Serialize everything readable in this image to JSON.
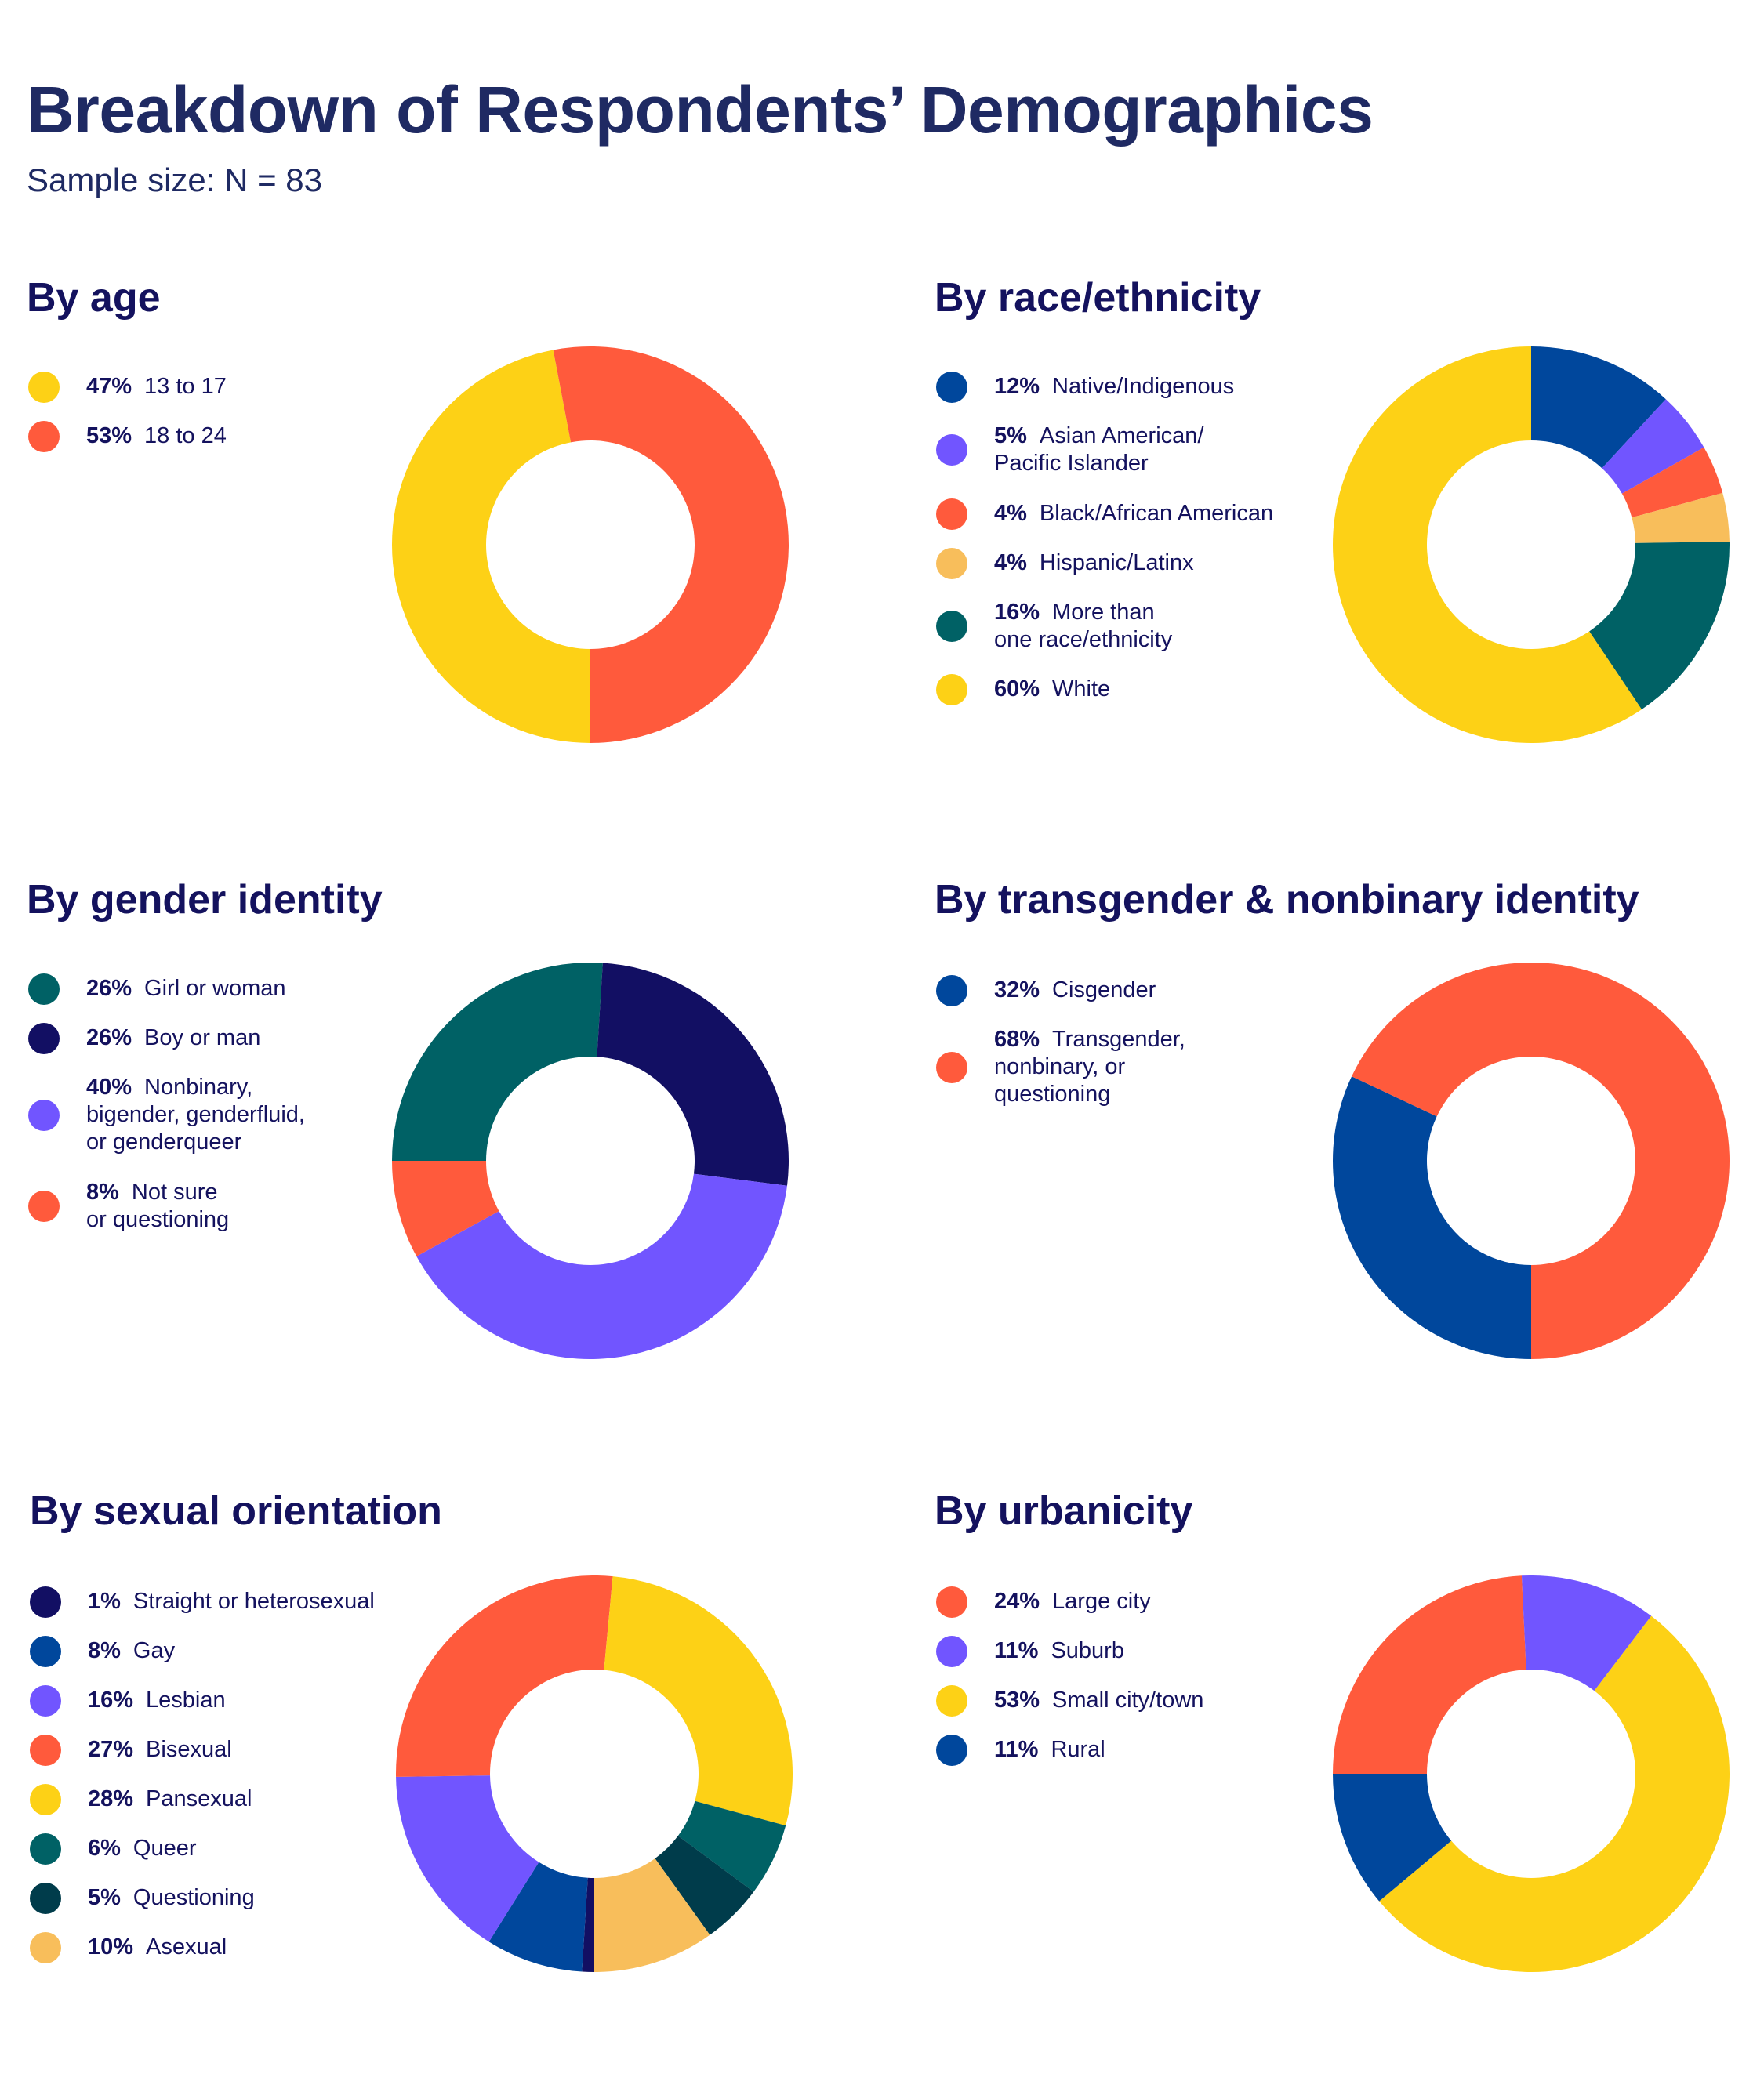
{
  "header": {
    "title": "Breakdown of Respondents’ Demographics",
    "subtitle": "Sample size: N = 83"
  },
  "colors": {
    "yellow": "#fdd116",
    "red": "#ff5a3c",
    "teal": "#006165",
    "navy": "#120f63",
    "purple": "#7155ff",
    "blue": "#00479c",
    "amber": "#f8be5b",
    "darkteal": "#003c4b"
  },
  "chart_data": [
    {
      "type": "pie",
      "title": "By age",
      "slices": [
        {
          "pct_label": "47%",
          "label": "13 to 17",
          "value": 47,
          "color": "#fdd116"
        },
        {
          "pct_label": "53%",
          "label": "18 to 24",
          "value": 53,
          "color": "#ff5a3c"
        }
      ]
    },
    {
      "type": "pie",
      "title": "By race/ethnicity",
      "slices": [
        {
          "pct_label": "12%",
          "label": "Native/Indigenous",
          "value": 12,
          "color": "#00479c"
        },
        {
          "pct_label": "5%",
          "label": "Asian American/ Pacific Islander",
          "value": 5,
          "color": "#7155ff"
        },
        {
          "pct_label": "4%",
          "label": "Black/African American",
          "value": 4,
          "color": "#ff5a3c"
        },
        {
          "pct_label": "4%",
          "label": "Hispanic/Latinx",
          "value": 4,
          "color": "#f8be5b"
        },
        {
          "pct_label": "16%",
          "label": "More than one race/ethnicity",
          "value": 16,
          "color": "#006165"
        },
        {
          "pct_label": "60%",
          "label": "White",
          "value": 60,
          "color": "#fdd116"
        }
      ]
    },
    {
      "type": "pie",
      "title": "By gender identity",
      "slices": [
        {
          "pct_label": "26%",
          "label": "Girl or woman",
          "value": 26,
          "color": "#006165"
        },
        {
          "pct_label": "26%",
          "label": "Boy or man",
          "value": 26,
          "color": "#120f63"
        },
        {
          "pct_label": "40%",
          "label": "Nonbinary, bigender, genderfluid, or genderqueer",
          "value": 40,
          "color": "#7155ff"
        },
        {
          "pct_label": "8%",
          "label": "Not sure or questioning",
          "value": 8,
          "color": "#ff5a3c"
        }
      ]
    },
    {
      "type": "pie",
      "title": "By transgender & nonbinary identity",
      "slices": [
        {
          "pct_label": "32%",
          "label": "Cisgender",
          "value": 32,
          "color": "#00479c"
        },
        {
          "pct_label": "68%",
          "label": "Transgender, nonbinary, or questioning",
          "value": 68,
          "color": "#ff5a3c"
        }
      ]
    },
    {
      "type": "pie",
      "title": "By sexual orientation",
      "slices": [
        {
          "pct_label": "1%",
          "label": "Straight or heterosexual",
          "value": 1,
          "color": "#120f63"
        },
        {
          "pct_label": "8%",
          "label": "Gay",
          "value": 8,
          "color": "#00479c"
        },
        {
          "pct_label": "16%",
          "label": "Lesbian",
          "value": 16,
          "color": "#7155ff"
        },
        {
          "pct_label": "27%",
          "label": "Bisexual",
          "value": 27,
          "color": "#ff5a3c"
        },
        {
          "pct_label": "28%",
          "label": "Pansexual",
          "value": 28,
          "color": "#fdd116"
        },
        {
          "pct_label": "6%",
          "label": "Queer",
          "value": 6,
          "color": "#006165"
        },
        {
          "pct_label": "5%",
          "label": "Questioning",
          "value": 5,
          "color": "#003c4b"
        },
        {
          "pct_label": "10%",
          "label": "Asexual",
          "value": 10,
          "color": "#f8be5b"
        }
      ]
    },
    {
      "type": "pie",
      "title": "By urbanicity",
      "slices": [
        {
          "pct_label": "24%",
          "label": "Large city",
          "value": 24,
          "color": "#ff5a3c"
        },
        {
          "pct_label": "11%",
          "label": "Suburb",
          "value": 11,
          "color": "#7155ff"
        },
        {
          "pct_label": "53%",
          "label": "Small city/town",
          "value": 53,
          "color": "#fdd116"
        },
        {
          "pct_label": "11%",
          "label": "Rural",
          "value": 11,
          "color": "#00479c"
        }
      ]
    }
  ]
}
